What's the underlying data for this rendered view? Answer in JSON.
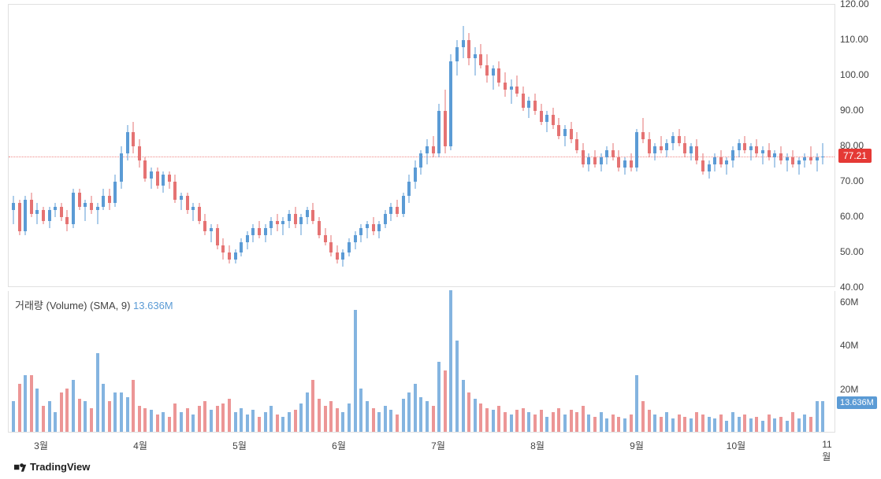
{
  "chart": {
    "type": "candlestick",
    "background_color": "#ffffff",
    "grid_color": "#e0e0e0",
    "up_color": "#5b9bd5",
    "down_color": "#e57373",
    "price_panel": {
      "ymin": 40,
      "ymax": 120,
      "ticks": [
        40,
        50,
        60,
        70,
        80,
        90,
        100,
        110,
        120
      ],
      "current_price": 77.21,
      "current_price_label": "77.21",
      "badge_bg": "#e53935",
      "badge_fg": "#ffffff"
    },
    "volume_panel": {
      "label_prefix": "거래량 (Volume) (SMA, 9)",
      "label_value": "13.636M",
      "label_value_color": "#5b9bd5",
      "ymin": 0,
      "ymax": 65000000,
      "ticks": [
        20000000,
        40000000,
        60000000
      ],
      "tick_labels": [
        "20M",
        "40M",
        "60M"
      ],
      "badge_value": "13.636M",
      "badge_bg": "#5b9bd5",
      "badge_fg": "#ffffff"
    },
    "x_axis": {
      "labels": [
        "3월",
        "4월",
        "5월",
        "6월",
        "7월",
        "8월",
        "9월",
        "10월",
        "11월"
      ],
      "positions": [
        0.04,
        0.16,
        0.28,
        0.4,
        0.52,
        0.64,
        0.76,
        0.88,
        0.99
      ]
    },
    "candles": [
      {
        "o": 62,
        "h": 66,
        "l": 58,
        "c": 64,
        "v": 14,
        "up": true
      },
      {
        "o": 64,
        "h": 65,
        "l": 55,
        "c": 56,
        "v": 22,
        "up": false
      },
      {
        "o": 56,
        "h": 66,
        "l": 55,
        "c": 65,
        "v": 26,
        "up": true
      },
      {
        "o": 65,
        "h": 67,
        "l": 60,
        "c": 61,
        "v": 26,
        "up": false
      },
      {
        "o": 61,
        "h": 64,
        "l": 58,
        "c": 62,
        "v": 20,
        "up": true
      },
      {
        "o": 62,
        "h": 63,
        "l": 58,
        "c": 59,
        "v": 12,
        "up": false
      },
      {
        "o": 59,
        "h": 63,
        "l": 57,
        "c": 62,
        "v": 14,
        "up": true
      },
      {
        "o": 62,
        "h": 64,
        "l": 60,
        "c": 63,
        "v": 9,
        "up": true
      },
      {
        "o": 63,
        "h": 64,
        "l": 59,
        "c": 60,
        "v": 18,
        "up": false
      },
      {
        "o": 60,
        "h": 62,
        "l": 56,
        "c": 58,
        "v": 20,
        "up": false
      },
      {
        "o": 58,
        "h": 68,
        "l": 57,
        "c": 67,
        "v": 24,
        "up": true
      },
      {
        "o": 67,
        "h": 68,
        "l": 62,
        "c": 63,
        "v": 15,
        "up": false
      },
      {
        "o": 63,
        "h": 65,
        "l": 59,
        "c": 64,
        "v": 14,
        "up": true
      },
      {
        "o": 64,
        "h": 66,
        "l": 61,
        "c": 62,
        "v": 11,
        "up": false
      },
      {
        "o": 62,
        "h": 64,
        "l": 58,
        "c": 63,
        "v": 36,
        "up": true
      },
      {
        "o": 63,
        "h": 68,
        "l": 62,
        "c": 66,
        "v": 22,
        "up": true
      },
      {
        "o": 66,
        "h": 68,
        "l": 62,
        "c": 64,
        "v": 14,
        "up": false
      },
      {
        "o": 64,
        "h": 72,
        "l": 63,
        "c": 70,
        "v": 18,
        "up": true
      },
      {
        "o": 70,
        "h": 80,
        "l": 68,
        "c": 78,
        "v": 18,
        "up": true
      },
      {
        "o": 78,
        "h": 86,
        "l": 76,
        "c": 84,
        "v": 16,
        "up": true
      },
      {
        "o": 84,
        "h": 87,
        "l": 78,
        "c": 80,
        "v": 24,
        "up": false
      },
      {
        "o": 80,
        "h": 82,
        "l": 74,
        "c": 76,
        "v": 12,
        "up": false
      },
      {
        "o": 76,
        "h": 77,
        "l": 70,
        "c": 71,
        "v": 11,
        "up": false
      },
      {
        "o": 71,
        "h": 74,
        "l": 68,
        "c": 73,
        "v": 10,
        "up": true
      },
      {
        "o": 73,
        "h": 74,
        "l": 68,
        "c": 69,
        "v": 8,
        "up": false
      },
      {
        "o": 69,
        "h": 73,
        "l": 67,
        "c": 72,
        "v": 9,
        "up": true
      },
      {
        "o": 72,
        "h": 73,
        "l": 68,
        "c": 70,
        "v": 7,
        "up": false
      },
      {
        "o": 70,
        "h": 72,
        "l": 64,
        "c": 65,
        "v": 13,
        "up": false
      },
      {
        "o": 65,
        "h": 67,
        "l": 62,
        "c": 66,
        "v": 9,
        "up": true
      },
      {
        "o": 66,
        "h": 67,
        "l": 61,
        "c": 62,
        "v": 11,
        "up": false
      },
      {
        "o": 62,
        "h": 64,
        "l": 59,
        "c": 63,
        "v": 8,
        "up": true
      },
      {
        "o": 63,
        "h": 64,
        "l": 58,
        "c": 59,
        "v": 12,
        "up": false
      },
      {
        "o": 59,
        "h": 61,
        "l": 55,
        "c": 56,
        "v": 14,
        "up": false
      },
      {
        "o": 56,
        "h": 58,
        "l": 53,
        "c": 57,
        "v": 10,
        "up": true
      },
      {
        "o": 57,
        "h": 58,
        "l": 51,
        "c": 52,
        "v": 12,
        "up": false
      },
      {
        "o": 52,
        "h": 54,
        "l": 48,
        "c": 50,
        "v": 13,
        "up": false
      },
      {
        "o": 50,
        "h": 52,
        "l": 47,
        "c": 48,
        "v": 15,
        "up": false
      },
      {
        "o": 48,
        "h": 51,
        "l": 47,
        "c": 50,
        "v": 9,
        "up": true
      },
      {
        "o": 50,
        "h": 54,
        "l": 49,
        "c": 53,
        "v": 11,
        "up": true
      },
      {
        "o": 53,
        "h": 56,
        "l": 51,
        "c": 55,
        "v": 8,
        "up": true
      },
      {
        "o": 55,
        "h": 58,
        "l": 53,
        "c": 57,
        "v": 10,
        "up": true
      },
      {
        "o": 57,
        "h": 59,
        "l": 54,
        "c": 55,
        "v": 7,
        "up": false
      },
      {
        "o": 55,
        "h": 58,
        "l": 53,
        "c": 57,
        "v": 9,
        "up": true
      },
      {
        "o": 57,
        "h": 60,
        "l": 55,
        "c": 59,
        "v": 12,
        "up": true
      },
      {
        "o": 59,
        "h": 61,
        "l": 56,
        "c": 58,
        "v": 8,
        "up": false
      },
      {
        "o": 58,
        "h": 60,
        "l": 55,
        "c": 59,
        "v": 7,
        "up": true
      },
      {
        "o": 59,
        "h": 62,
        "l": 57,
        "c": 61,
        "v": 9,
        "up": true
      },
      {
        "o": 61,
        "h": 63,
        "l": 57,
        "c": 58,
        "v": 10,
        "up": false
      },
      {
        "o": 58,
        "h": 61,
        "l": 55,
        "c": 60,
        "v": 13,
        "up": true
      },
      {
        "o": 60,
        "h": 63,
        "l": 58,
        "c": 62,
        "v": 18,
        "up": true
      },
      {
        "o": 62,
        "h": 64,
        "l": 58,
        "c": 59,
        "v": 24,
        "up": false
      },
      {
        "o": 59,
        "h": 60,
        "l": 54,
        "c": 55,
        "v": 15,
        "up": false
      },
      {
        "o": 55,
        "h": 57,
        "l": 52,
        "c": 53,
        "v": 12,
        "up": false
      },
      {
        "o": 53,
        "h": 55,
        "l": 49,
        "c": 50,
        "v": 14,
        "up": false
      },
      {
        "o": 50,
        "h": 52,
        "l": 47,
        "c": 48,
        "v": 11,
        "up": false
      },
      {
        "o": 48,
        "h": 51,
        "l": 46,
        "c": 50,
        "v": 9,
        "up": true
      },
      {
        "o": 50,
        "h": 54,
        "l": 49,
        "c": 53,
        "v": 13,
        "up": true
      },
      {
        "o": 53,
        "h": 56,
        "l": 51,
        "c": 55,
        "v": 56,
        "up": true
      },
      {
        "o": 55,
        "h": 58,
        "l": 53,
        "c": 57,
        "v": 20,
        "up": true
      },
      {
        "o": 57,
        "h": 59,
        "l": 54,
        "c": 58,
        "v": 14,
        "up": true
      },
      {
        "o": 58,
        "h": 60,
        "l": 55,
        "c": 56,
        "v": 11,
        "up": false
      },
      {
        "o": 56,
        "h": 59,
        "l": 54,
        "c": 58,
        "v": 9,
        "up": true
      },
      {
        "o": 58,
        "h": 62,
        "l": 57,
        "c": 61,
        "v": 12,
        "up": true
      },
      {
        "o": 61,
        "h": 64,
        "l": 59,
        "c": 63,
        "v": 10,
        "up": true
      },
      {
        "o": 63,
        "h": 65,
        "l": 60,
        "c": 61,
        "v": 8,
        "up": false
      },
      {
        "o": 61,
        "h": 67,
        "l": 60,
        "c": 66,
        "v": 15,
        "up": true
      },
      {
        "o": 66,
        "h": 72,
        "l": 64,
        "c": 70,
        "v": 18,
        "up": true
      },
      {
        "o": 70,
        "h": 76,
        "l": 68,
        "c": 74,
        "v": 22,
        "up": true
      },
      {
        "o": 74,
        "h": 79,
        "l": 72,
        "c": 78,
        "v": 16,
        "up": true
      },
      {
        "o": 78,
        "h": 82,
        "l": 75,
        "c": 80,
        "v": 14,
        "up": true
      },
      {
        "o": 80,
        "h": 83,
        "l": 77,
        "c": 78,
        "v": 12,
        "up": false
      },
      {
        "o": 78,
        "h": 92,
        "l": 77,
        "c": 90,
        "v": 32,
        "up": true
      },
      {
        "o": 90,
        "h": 96,
        "l": 78,
        "c": 80,
        "v": 28,
        "up": false
      },
      {
        "o": 80,
        "h": 106,
        "l": 79,
        "c": 104,
        "v": 65,
        "up": true
      },
      {
        "o": 104,
        "h": 110,
        "l": 100,
        "c": 108,
        "v": 42,
        "up": true
      },
      {
        "o": 108,
        "h": 114,
        "l": 105,
        "c": 110,
        "v": 24,
        "up": true
      },
      {
        "o": 110,
        "h": 112,
        "l": 103,
        "c": 105,
        "v": 18,
        "up": false
      },
      {
        "o": 105,
        "h": 108,
        "l": 100,
        "c": 106,
        "v": 15,
        "up": true
      },
      {
        "o": 106,
        "h": 109,
        "l": 102,
        "c": 103,
        "v": 13,
        "up": false
      },
      {
        "o": 103,
        "h": 106,
        "l": 98,
        "c": 100,
        "v": 11,
        "up": false
      },
      {
        "o": 100,
        "h": 103,
        "l": 96,
        "c": 102,
        "v": 10,
        "up": true
      },
      {
        "o": 102,
        "h": 104,
        "l": 97,
        "c": 98,
        "v": 12,
        "up": false
      },
      {
        "o": 98,
        "h": 101,
        "l": 94,
        "c": 96,
        "v": 9,
        "up": false
      },
      {
        "o": 96,
        "h": 99,
        "l": 92,
        "c": 97,
        "v": 8,
        "up": true
      },
      {
        "o": 97,
        "h": 100,
        "l": 94,
        "c": 95,
        "v": 10,
        "up": false
      },
      {
        "o": 95,
        "h": 97,
        "l": 90,
        "c": 91,
        "v": 11,
        "up": false
      },
      {
        "o": 91,
        "h": 94,
        "l": 88,
        "c": 93,
        "v": 9,
        "up": true
      },
      {
        "o": 93,
        "h": 95,
        "l": 89,
        "c": 90,
        "v": 8,
        "up": false
      },
      {
        "o": 90,
        "h": 92,
        "l": 86,
        "c": 87,
        "v": 10,
        "up": false
      },
      {
        "o": 87,
        "h": 90,
        "l": 84,
        "c": 89,
        "v": 7,
        "up": true
      },
      {
        "o": 89,
        "h": 91,
        "l": 85,
        "c": 86,
        "v": 9,
        "up": false
      },
      {
        "o": 86,
        "h": 88,
        "l": 82,
        "c": 83,
        "v": 11,
        "up": false
      },
      {
        "o": 83,
        "h": 86,
        "l": 80,
        "c": 85,
        "v": 8,
        "up": true
      },
      {
        "o": 85,
        "h": 87,
        "l": 81,
        "c": 82,
        "v": 10,
        "up": false
      },
      {
        "o": 82,
        "h": 84,
        "l": 78,
        "c": 79,
        "v": 9,
        "up": false
      },
      {
        "o": 79,
        "h": 81,
        "l": 74,
        "c": 75,
        "v": 12,
        "up": false
      },
      {
        "o": 75,
        "h": 78,
        "l": 73,
        "c": 77,
        "v": 8,
        "up": true
      },
      {
        "o": 77,
        "h": 79,
        "l": 74,
        "c": 75,
        "v": 7,
        "up": false
      },
      {
        "o": 75,
        "h": 78,
        "l": 73,
        "c": 77,
        "v": 9,
        "up": true
      },
      {
        "o": 77,
        "h": 80,
        "l": 75,
        "c": 79,
        "v": 6,
        "up": true
      },
      {
        "o": 79,
        "h": 81,
        "l": 76,
        "c": 77,
        "v": 8,
        "up": false
      },
      {
        "o": 77,
        "h": 79,
        "l": 73,
        "c": 74,
        "v": 7,
        "up": false
      },
      {
        "o": 74,
        "h": 77,
        "l": 72,
        "c": 76,
        "v": 6,
        "up": true
      },
      {
        "o": 76,
        "h": 78,
        "l": 73,
        "c": 74,
        "v": 8,
        "up": false
      },
      {
        "o": 74,
        "h": 85,
        "l": 73,
        "c": 84,
        "v": 26,
        "up": true
      },
      {
        "o": 84,
        "h": 88,
        "l": 81,
        "c": 82,
        "v": 14,
        "up": false
      },
      {
        "o": 82,
        "h": 84,
        "l": 77,
        "c": 78,
        "v": 10,
        "up": false
      },
      {
        "o": 78,
        "h": 81,
        "l": 76,
        "c": 80,
        "v": 8,
        "up": true
      },
      {
        "o": 80,
        "h": 83,
        "l": 78,
        "c": 79,
        "v": 7,
        "up": false
      },
      {
        "o": 79,
        "h": 82,
        "l": 77,
        "c": 81,
        "v": 9,
        "up": true
      },
      {
        "o": 81,
        "h": 84,
        "l": 79,
        "c": 83,
        "v": 6,
        "up": true
      },
      {
        "o": 83,
        "h": 85,
        "l": 80,
        "c": 81,
        "v": 8,
        "up": false
      },
      {
        "o": 81,
        "h": 83,
        "l": 77,
        "c": 78,
        "v": 7,
        "up": false
      },
      {
        "o": 78,
        "h": 81,
        "l": 76,
        "c": 80,
        "v": 6,
        "up": true
      },
      {
        "o": 80,
        "h": 82,
        "l": 75,
        "c": 76,
        "v": 9,
        "up": false
      },
      {
        "o": 76,
        "h": 78,
        "l": 72,
        "c": 73,
        "v": 8,
        "up": false
      },
      {
        "o": 73,
        "h": 76,
        "l": 71,
        "c": 75,
        "v": 7,
        "up": true
      },
      {
        "o": 75,
        "h": 78,
        "l": 73,
        "c": 77,
        "v": 6,
        "up": true
      },
      {
        "o": 77,
        "h": 79,
        "l": 74,
        "c": 75,
        "v": 8,
        "up": false
      },
      {
        "o": 75,
        "h": 77,
        "l": 72,
        "c": 76,
        "v": 5,
        "up": true
      },
      {
        "o": 76,
        "h": 80,
        "l": 74,
        "c": 79,
        "v": 9,
        "up": true
      },
      {
        "o": 79,
        "h": 82,
        "l": 77,
        "c": 81,
        "v": 7,
        "up": true
      },
      {
        "o": 81,
        "h": 83,
        "l": 78,
        "c": 79,
        "v": 8,
        "up": false
      },
      {
        "o": 79,
        "h": 81,
        "l": 76,
        "c": 80,
        "v": 6,
        "up": true
      },
      {
        "o": 80,
        "h": 82,
        "l": 77,
        "c": 78,
        "v": 7,
        "up": false
      },
      {
        "o": 78,
        "h": 80,
        "l": 75,
        "c": 79,
        "v": 5,
        "up": true
      },
      {
        "o": 79,
        "h": 81,
        "l": 76,
        "c": 77,
        "v": 8,
        "up": false
      },
      {
        "o": 77,
        "h": 79,
        "l": 74,
        "c": 78,
        "v": 6,
        "up": true
      },
      {
        "o": 78,
        "h": 80,
        "l": 75,
        "c": 76,
        "v": 7,
        "up": false
      },
      {
        "o": 76,
        "h": 78,
        "l": 73,
        "c": 77,
        "v": 5,
        "up": true
      },
      {
        "o": 77,
        "h": 79,
        "l": 74,
        "c": 75,
        "v": 9,
        "up": false
      },
      {
        "o": 75,
        "h": 77,
        "l": 72,
        "c": 76,
        "v": 6,
        "up": true
      },
      {
        "o": 76,
        "h": 78,
        "l": 74,
        "c": 77,
        "v": 8,
        "up": true
      },
      {
        "o": 77,
        "h": 80,
        "l": 75,
        "c": 76,
        "v": 7,
        "up": false
      },
      {
        "o": 76,
        "h": 78,
        "l": 73,
        "c": 77,
        "v": 14,
        "up": true
      },
      {
        "o": 77,
        "h": 81,
        "l": 75,
        "c": 77.21,
        "v": 14,
        "up": true
      }
    ]
  },
  "footer": {
    "brand": "TradingView"
  }
}
